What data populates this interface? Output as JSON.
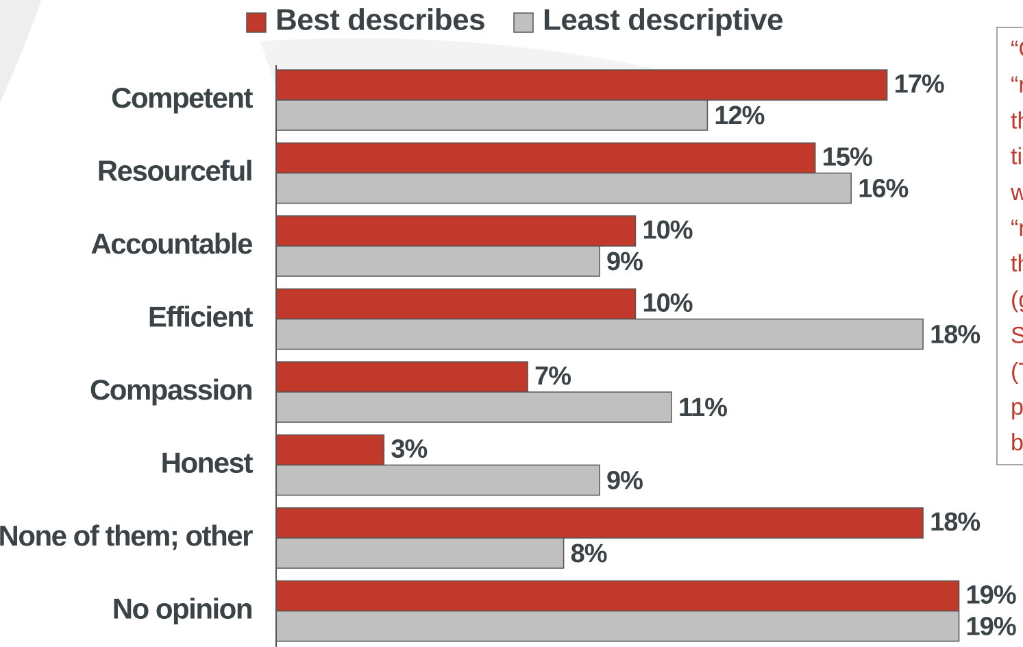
{
  "chart_data": {
    "type": "barh",
    "categories": [
      "Competent",
      "Resourceful",
      "Accountable",
      "Efficient",
      "Compassion",
      "Honest",
      "None of them; other",
      "No opinion"
    ],
    "series": [
      {
        "name": "Best describes",
        "color": "#c0392b",
        "values": [
          17,
          15,
          10,
          10,
          7,
          3,
          18,
          19
        ],
        "value_labels": [
          "17%",
          "15%",
          "10%",
          "10%",
          "7%",
          "3%",
          "18%",
          "19%"
        ]
      },
      {
        "name": "Least descriptive",
        "color": "#c0c0c0",
        "values": [
          12,
          16,
          9,
          18,
          11,
          9,
          8,
          19
        ],
        "value_labels": [
          "12%",
          "16%",
          "9%",
          "18%",
          "11%",
          "9%",
          "8%",
          "19%"
        ]
      }
    ],
    "xlim": [
      0,
      20
    ],
    "annotation_lines": [
      "“C",
      "“r",
      "th",
      "ti",
      "w",
      "“r",
      "th",
      "(g",
      "S",
      "(T",
      "p",
      "b"
    ]
  }
}
